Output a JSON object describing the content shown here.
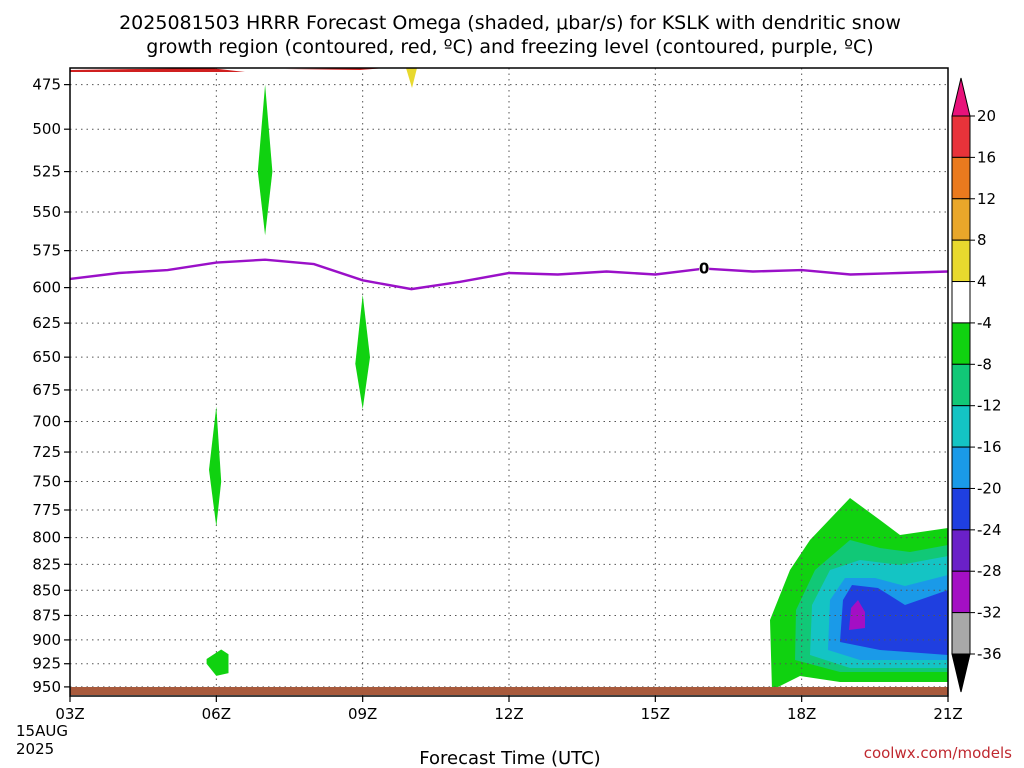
{
  "chart_data": {
    "type": "contour",
    "title_line1": "2025081503 HRRR Forecast Omega (shaded, μbar/s) for KSLK with dendritic snow",
    "title_line2": "growth region (contoured, red, ºC) and freezing level (contoured, purple, ºC)",
    "xlabel": "Forecast Time (UTC)",
    "credit": "coolwx.com/models",
    "x_ticks": [
      "03Z",
      "06Z",
      "09Z",
      "12Z",
      "15Z",
      "18Z",
      "21Z"
    ],
    "x_start_label": [
      "15AUG",
      "2025"
    ],
    "x_range_hours": [
      3,
      21
    ],
    "y_ticks": [
      475,
      500,
      525,
      550,
      575,
      600,
      625,
      650,
      675,
      700,
      725,
      750,
      775,
      800,
      825,
      850,
      875,
      900,
      925,
      950
    ],
    "y_range_hpa": [
      960,
      466
    ],
    "grid": true,
    "colorbar": {
      "labels": [
        "20",
        "16",
        "12",
        "8",
        "4",
        "-4",
        "-8",
        "-12",
        "-16",
        "-20",
        "-24",
        "-28",
        "-32",
        "-36"
      ],
      "colors": [
        "#e8127a",
        "#e8333a",
        "#ea7a1e",
        "#e9a72a",
        "#e8d92e",
        "#ffffff",
        "#10d210",
        "#11c877",
        "#14c4c4",
        "#1a9ae8",
        "#1f3fe0",
        "#6a20c8",
        "#a40fc4",
        "#a8a8a8",
        "#000000"
      ]
    },
    "freezing_level": {
      "label": "0",
      "color": "#9a10c8",
      "hours": [
        3,
        4,
        5,
        6,
        7,
        8,
        9,
        10,
        11,
        12,
        13,
        14,
        15,
        16,
        17,
        18,
        19,
        20,
        21
      ],
      "pressure": [
        594,
        590,
        588,
        583,
        581,
        584,
        595,
        601,
        596,
        590,
        591,
        589,
        591,
        587,
        589,
        588,
        591,
        590,
        589
      ]
    },
    "omega_regions": [
      {
        "level": -4,
        "color": "#10d210",
        "label": "green",
        "hours": [
          7.0,
          7.15,
          7.0,
          6.85
        ],
        "pressure": [
          475,
          525,
          565,
          525
        ]
      },
      {
        "level": -4,
        "color": "#10d210",
        "label": "green",
        "hours": [
          9.0,
          9.15,
          9.0,
          8.85
        ],
        "pressure": [
          605,
          650,
          690,
          655
        ]
      },
      {
        "level": -4,
        "color": "#10d210",
        "label": "green",
        "hours": [
          6.0,
          6.1,
          6.0,
          5.85
        ],
        "pressure": [
          688,
          750,
          790,
          740
        ]
      },
      {
        "level": -4,
        "color": "#10d210",
        "label": "green",
        "hours": [
          5.8,
          6.1,
          6.25,
          6.25,
          6.0,
          5.8
        ],
        "pressure": [
          920,
          910,
          915,
          935,
          938,
          925
        ]
      }
    ],
    "bottom_band": {
      "color": "#a85a3c"
    },
    "top_contours": {
      "color": "#d02020",
      "yellow": "#e8d92e"
    }
  }
}
